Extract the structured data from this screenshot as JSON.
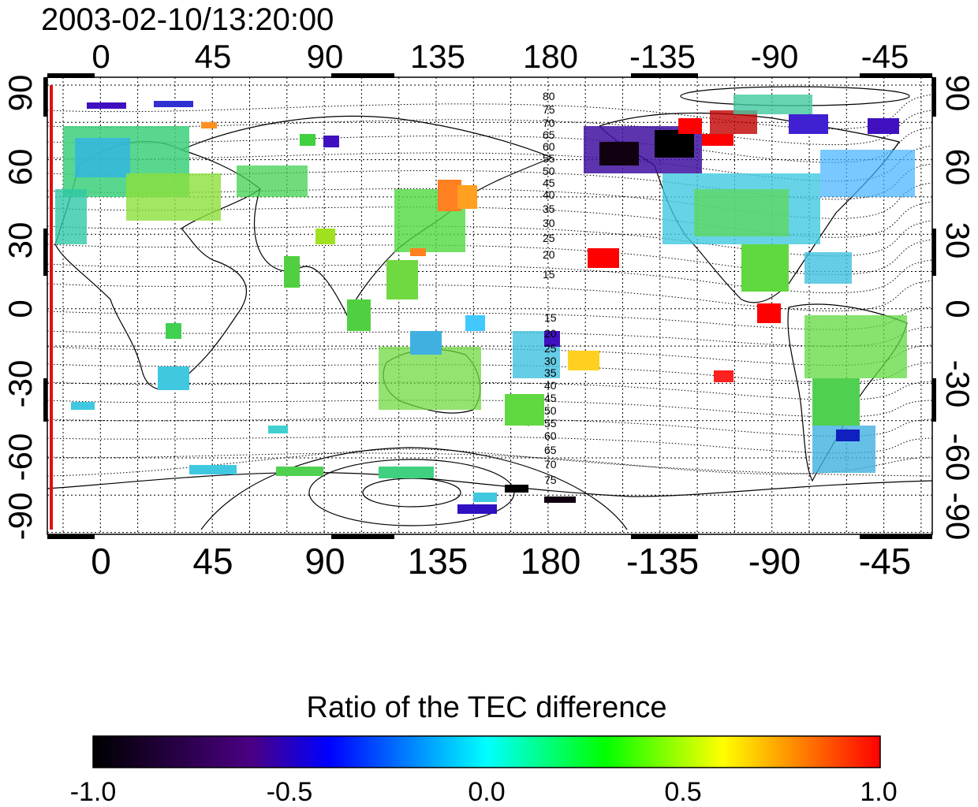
{
  "title": "2003-02-10/13:20:00",
  "colorbar": {
    "label": "Ratio of the TEC difference",
    "ticks": [
      "-1.0",
      "-0.5",
      "0.0",
      "0.5",
      "1.0"
    ],
    "stops": [
      "#000000",
      "#4b0082",
      "#0000ff",
      "#00ffff",
      "#00ff00",
      "#ffff00",
      "#ff0000"
    ]
  },
  "map": {
    "lon_ticks_top": [
      "0",
      "45",
      "90",
      "135",
      "180",
      "-135",
      "-90",
      "-45"
    ],
    "lon_ticks_bottom": [
      "0",
      "45",
      "90",
      "135",
      "180",
      "-135",
      "-90",
      "-45"
    ],
    "lat_ticks_left": [
      "90",
      "60",
      "30",
      "0",
      "-30",
      "-60",
      "-90"
    ],
    "lat_ticks_right": [
      "90",
      "60",
      "30",
      "0",
      "-30",
      "-60",
      "-90"
    ],
    "contour_labels_north": [
      "80",
      "75",
      "70",
      "65",
      "60",
      "55",
      "50",
      "45",
      "40",
      "35",
      "30",
      "25",
      "20",
      "15"
    ],
    "contour_labels_south": [
      "15",
      "20",
      "25",
      "30",
      "35",
      "40",
      "45",
      "50",
      "55",
      "60",
      "65",
      "70",
      "75"
    ],
    "marker_color": "#e01010"
  }
}
